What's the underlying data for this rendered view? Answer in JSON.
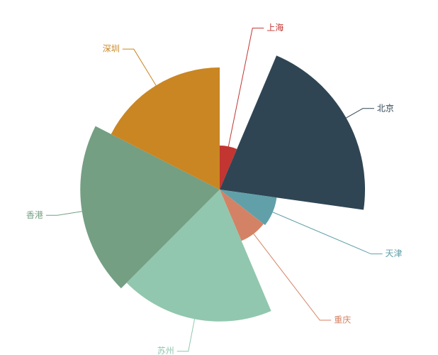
{
  "chart_data": {
    "type": "rose",
    "categories": [
      "上海",
      "北京",
      "天津",
      "重庆",
      "苏州",
      "香港",
      "深圳"
    ],
    "values": [
      23,
      75,
      30,
      29,
      68,
      72,
      63
    ],
    "colors": [
      "#c23531",
      "#2f4554",
      "#61a0a8",
      "#d48265",
      "#91c7ae",
      "#749f83",
      "#ca8622"
    ]
  }
}
